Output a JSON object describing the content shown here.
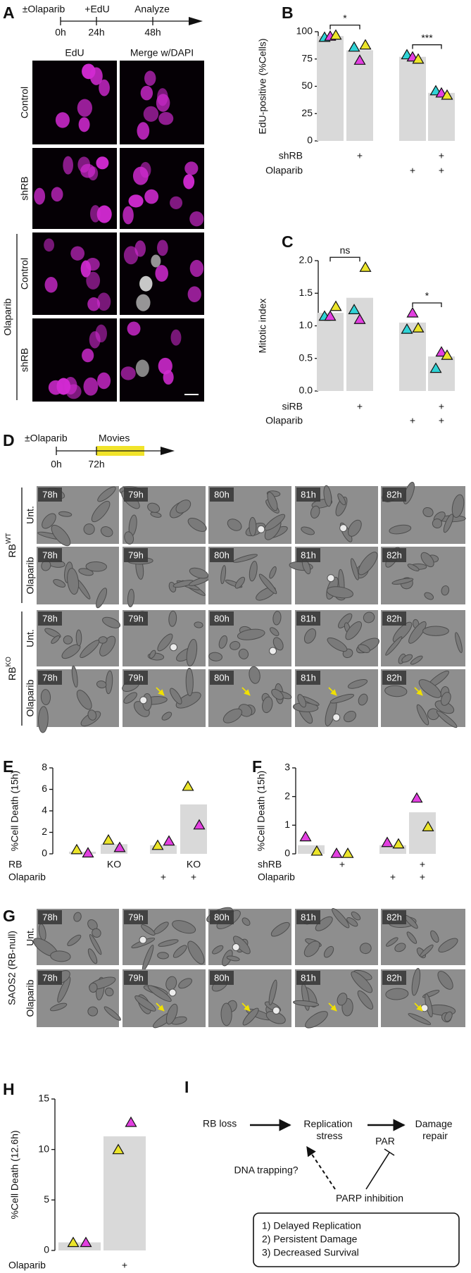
{
  "panel_labels": [
    "A",
    "B",
    "C",
    "D",
    "E",
    "F",
    "G",
    "H",
    "I"
  ],
  "panel_a": {
    "timeline": {
      "labels": [
        "±Olaparib",
        "+EdU",
        "Analyze"
      ],
      "times": [
        "0h",
        "24h",
        "48h"
      ]
    },
    "columns": [
      "EdU",
      "Merge w/DAPI"
    ],
    "rows": [
      "Control",
      "shRB",
      "Control",
      "shRB"
    ],
    "group": "Olaparib"
  },
  "panel_d": {
    "timeline": {
      "labels": [
        "±Olaparib",
        "Movies"
      ],
      "times": [
        "0h",
        "72h"
      ]
    },
    "times": [
      "78h",
      "79h",
      "80h",
      "81h",
      "82h"
    ],
    "groups": [
      {
        "base": "RB",
        "sup": "WT"
      },
      {
        "base": "RB",
        "sup": "KO"
      }
    ],
    "rows": [
      "Unt.",
      "Olaparib"
    ]
  },
  "panel_g": {
    "times": [
      "78h",
      "79h",
      "80h",
      "81h",
      "82h"
    ],
    "rows": [
      "Unt.",
      "Olaparib"
    ],
    "group": "SAOS2 (RB-null)"
  },
  "panel_i": {
    "start": "RB loss",
    "middle": [
      "Replication",
      "stress"
    ],
    "end": [
      "Damage",
      "repair"
    ],
    "par": "PAR",
    "trapping": "DNA trapping?",
    "inhibition": "PARP inhibition",
    "outcomes": [
      "1) Delayed Replication",
      "2) Persistent Damage",
      "3) Decreased Survival"
    ]
  },
  "chart_data": [
    {
      "type": "bar",
      "ylabel": "EdU-positive (%Cells)",
      "ylim": [
        0,
        100
      ],
      "yticks": [
        0,
        25,
        50,
        75,
        100
      ],
      "values": [
        96,
        83,
        77,
        44
      ],
      "color": "#d9d9d9",
      "series": [
        {
          "color": "#2fd3d6",
          "values": [
            95,
            86,
            79,
            46
          ]
        },
        {
          "color": "#e23fe0",
          "values": [
            96,
            74,
            77,
            44
          ]
        },
        {
          "color": "#ece52a",
          "values": [
            97,
            88,
            75,
            42
          ]
        }
      ],
      "annotations": [
        "*",
        "***"
      ],
      "conditions": [
        {
          "label": "shRB",
          "marks": [
            null,
            "+",
            null,
            "+"
          ]
        },
        {
          "label": "Olaparib",
          "marks": [
            null,
            null,
            "+",
            "+"
          ]
        }
      ]
    },
    {
      "type": "bar",
      "ylabel": "Mitotic index",
      "ylim": [
        0,
        2.0
      ],
      "yticks": [
        {
          "value": 0,
          "label": "0.0"
        },
        0.5,
        {
          "value": 1,
          "label": "1.0"
        },
        1.5,
        {
          "value": 2,
          "label": "2.0"
        }
      ],
      "values": [
        1.2,
        1.43,
        1.05,
        0.53
      ],
      "color": "#d9d9d9",
      "series": [
        {
          "color": "#2fd3d6",
          "values": [
            1.15,
            1.25,
            0.95,
            0.35
          ]
        },
        {
          "color": "#e23fe0",
          "values": [
            1.15,
            1.1,
            1.2,
            0.6
          ]
        },
        {
          "color": "#ece52a",
          "values": [
            1.3,
            1.9,
            0.97,
            0.55
          ]
        }
      ],
      "annotations": [
        "ns",
        "*"
      ],
      "conditions": [
        {
          "label": "siRB",
          "marks": [
            null,
            "+",
            null,
            "+"
          ]
        },
        {
          "label": "Olaparib",
          "marks": [
            null,
            null,
            "+",
            "+"
          ]
        }
      ]
    },
    {
      "type": "bar",
      "ylabel": "%Cell Death (15h)",
      "ylim": [
        0,
        8
      ],
      "yticks": [
        0,
        2,
        4,
        6,
        8
      ],
      "values": [
        0.2,
        0.9,
        0.8,
        4.6
      ],
      "color": "#d9d9d9",
      "series": [
        {
          "color": "#ece52a",
          "values": [
            0.4,
            1.3,
            0.8,
            6.3
          ]
        },
        {
          "color": "#e23fe0",
          "values": [
            0.1,
            0.6,
            1.2,
            2.7
          ]
        }
      ],
      "conditions": [
        {
          "label": "RB",
          "marks": [
            null,
            "KO",
            null,
            "KO"
          ]
        },
        {
          "label": "Olaparib",
          "marks": [
            null,
            null,
            "+",
            "+"
          ]
        }
      ]
    },
    {
      "type": "bar",
      "ylabel": "%Cell Death (15h)",
      "ylim": [
        0,
        3
      ],
      "yticks": [
        0,
        1,
        2,
        3
      ],
      "values": [
        0.3,
        0,
        0.3,
        1.45
      ],
      "color": "#d9d9d9",
      "series": [
        {
          "color": "#e23fe0",
          "values": [
            0.6,
            0.02,
            0.4,
            1.95
          ]
        },
        {
          "color": "#ece52a",
          "values": [
            0.1,
            0.02,
            0.35,
            0.95
          ]
        }
      ],
      "conditions": [
        {
          "label": "shRB",
          "marks": [
            null,
            "+",
            null,
            "+"
          ]
        },
        {
          "label": "Olaparib",
          "marks": [
            null,
            null,
            "+",
            "+"
          ]
        }
      ]
    },
    {
      "type": "bar",
      "ylabel": "%Cell Death (12.6h)",
      "ylim": [
        0,
        15
      ],
      "yticks": [
        0,
        5,
        10,
        15
      ],
      "values": [
        0.8,
        11.3
      ],
      "color": "#d9d9d9",
      "series": [
        {
          "color": "#ece52a",
          "values": [
            0.8,
            10.0
          ]
        },
        {
          "color": "#e23fe0",
          "values": [
            0.8,
            12.7
          ]
        }
      ],
      "conditions": [
        {
          "label": "Olaparib",
          "marks": [
            null,
            "+"
          ]
        }
      ]
    }
  ]
}
